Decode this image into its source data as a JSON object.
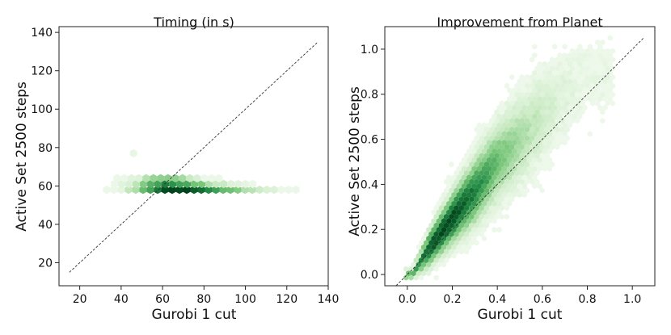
{
  "chart_data": [
    {
      "type": "hexbin",
      "title": "Timing (in s)",
      "xlabel": "Gurobi 1 cut",
      "ylabel": "Active Set 2500 steps",
      "xlim": [
        10,
        140
      ],
      "ylim": [
        8,
        143
      ],
      "xticks": [
        20,
        40,
        60,
        80,
        100,
        120,
        140
      ],
      "yticks": [
        20,
        40,
        60,
        80,
        100,
        120,
        140
      ],
      "reference_line": {
        "from": [
          15,
          15
        ],
        "to": [
          135,
          135
        ],
        "style": "dashed"
      },
      "color": "#00441b",
      "density_bands": [
        {
          "y": 58,
          "xmin": 33,
          "xmax": 125,
          "peak_x": 65,
          "peak_density": 1.0
        },
        {
          "y": 61,
          "xmin": 35,
          "xmax": 105,
          "peak_x": 62,
          "peak_density": 0.75
        },
        {
          "y": 64,
          "xmin": 38,
          "xmax": 90,
          "peak_x": 60,
          "peak_density": 0.45
        }
      ],
      "outliers": [
        {
          "x": 46,
          "y": 77
        }
      ]
    },
    {
      "type": "hexbin",
      "title": "Improvement from Planet",
      "xlabel": "Gurobi 1 cut",
      "ylabel": "Active Set 2500 steps",
      "xlim": [
        -0.1,
        1.1
      ],
      "ylim": [
        -0.05,
        1.1
      ],
      "xticks": [
        "0.0",
        "0.2",
        "0.4",
        "0.6",
        "0.8",
        "1.0"
      ],
      "yticks": [
        "0.0",
        "0.2",
        "0.4",
        "0.6",
        "0.8",
        "1.0"
      ],
      "reference_line": {
        "from": [
          -0.05,
          -0.05
        ],
        "to": [
          1.05,
          1.05
        ],
        "style": "dashed"
      },
      "color": "#00441b",
      "density_trend": [
        {
          "x": 0.02,
          "y_center": 0.0,
          "spread": 0.02,
          "density": 0.6
        },
        {
          "x": 0.1,
          "y_center": 0.12,
          "spread": 0.07,
          "density": 0.95
        },
        {
          "x": 0.2,
          "y_center": 0.25,
          "spread": 0.1,
          "density": 1.0
        },
        {
          "x": 0.3,
          "y_center": 0.37,
          "spread": 0.13,
          "density": 0.8
        },
        {
          "x": 0.4,
          "y_center": 0.5,
          "spread": 0.15,
          "density": 0.55
        },
        {
          "x": 0.5,
          "y_center": 0.6,
          "spread": 0.17,
          "density": 0.35
        },
        {
          "x": 0.6,
          "y_center": 0.7,
          "spread": 0.18,
          "density": 0.22
        },
        {
          "x": 0.7,
          "y_center": 0.8,
          "spread": 0.17,
          "density": 0.12
        },
        {
          "x": 0.8,
          "y_center": 0.88,
          "spread": 0.15,
          "density": 0.07
        }
      ]
    }
  ]
}
